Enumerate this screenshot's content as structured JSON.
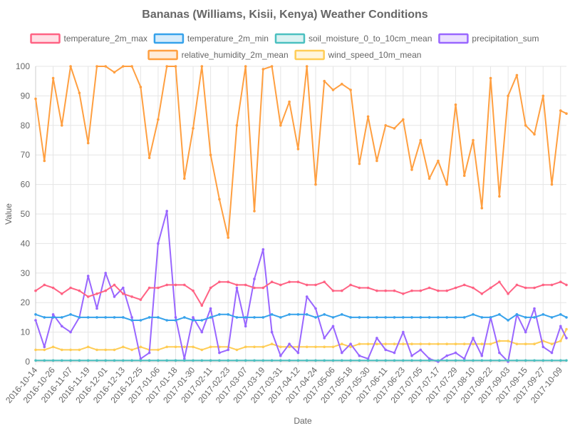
{
  "chart_data": {
    "type": "line",
    "title": "Bananas (Williams, Kisii, Kenya) Weather Conditions",
    "xlabel": "Date",
    "ylabel": "Value",
    "ylim": [
      0,
      100
    ],
    "yticks": [
      0,
      10,
      20,
      30,
      40,
      50,
      60,
      70,
      80,
      90,
      100
    ],
    "x_tick_labels": [
      "2016-10-14",
      "2016-10-26",
      "2016-11-07",
      "2016-11-19",
      "2016-12-01",
      "2016-12-13",
      "2016-12-25",
      "2017-01-06",
      "2017-01-18",
      "2017-01-30",
      "2017-02-11",
      "2017-02-23",
      "2017-03-07",
      "2017-03-19",
      "2017-03-31",
      "2017-04-12",
      "2017-04-24",
      "2017-05-06",
      "2017-05-18",
      "2017-05-30",
      "2017-06-11",
      "2017-06-23",
      "2017-07-05",
      "2017-07-17",
      "2017-07-29",
      "2017-08-10",
      "2017-08-22",
      "2017-09-03",
      "2017-09-15",
      "2017-09-27",
      "2017-10-09"
    ],
    "x": [
      "2016-10-14",
      "2016-10-20",
      "2016-10-26",
      "2016-11-01",
      "2016-11-07",
      "2016-11-13",
      "2016-11-19",
      "2016-11-25",
      "2016-12-01",
      "2016-12-07",
      "2016-12-13",
      "2016-12-19",
      "2016-12-25",
      "2016-12-31",
      "2017-01-06",
      "2017-01-12",
      "2017-01-18",
      "2017-01-24",
      "2017-01-30",
      "2017-02-05",
      "2017-02-11",
      "2017-02-17",
      "2017-02-23",
      "2017-03-01",
      "2017-03-07",
      "2017-03-13",
      "2017-03-19",
      "2017-03-25",
      "2017-03-31",
      "2017-04-06",
      "2017-04-12",
      "2017-04-18",
      "2017-04-24",
      "2017-04-30",
      "2017-05-06",
      "2017-05-12",
      "2017-05-18",
      "2017-05-24",
      "2017-05-30",
      "2017-06-05",
      "2017-06-11",
      "2017-06-17",
      "2017-06-23",
      "2017-06-29",
      "2017-07-05",
      "2017-07-11",
      "2017-07-17",
      "2017-07-23",
      "2017-07-29",
      "2017-08-04",
      "2017-08-10",
      "2017-08-16",
      "2017-08-22",
      "2017-08-28",
      "2017-09-03",
      "2017-09-09",
      "2017-09-15",
      "2017-09-21",
      "2017-09-27",
      "2017-10-03",
      "2017-10-09",
      "2017-10-13"
    ],
    "legend_position": "top",
    "grid": true,
    "series": [
      {
        "name": "temperature_2m_max",
        "color": "#ff6384",
        "fill": "#ffe0e6",
        "values": [
          24,
          26,
          25,
          23,
          25,
          24,
          22,
          23,
          24,
          26,
          23,
          22,
          21,
          25,
          25,
          26,
          26,
          26,
          24,
          19,
          25,
          27,
          27,
          26,
          26,
          25,
          25,
          27,
          26,
          27,
          27,
          26,
          26,
          27,
          24,
          24,
          26,
          25,
          25,
          24,
          24,
          24,
          23,
          24,
          24,
          25,
          24,
          24,
          25,
          26,
          25,
          23,
          25,
          27,
          23,
          26,
          25,
          25,
          26,
          26,
          27,
          26
        ]
      },
      {
        "name": "temperature_2m_min",
        "color": "#36a2eb",
        "fill": "#d7ecfb",
        "values": [
          16,
          15,
          15,
          15,
          16,
          15,
          15,
          15,
          15,
          15,
          15,
          14,
          14,
          15,
          15,
          14,
          14,
          15,
          14,
          14,
          15,
          16,
          16,
          15,
          15,
          15,
          15,
          16,
          15,
          16,
          16,
          16,
          15,
          16,
          15,
          16,
          15,
          15,
          15,
          15,
          15,
          15,
          15,
          15,
          15,
          15,
          15,
          15,
          15,
          15,
          16,
          15,
          15,
          16,
          14,
          16,
          15,
          15,
          16,
          15,
          16,
          15
        ]
      },
      {
        "name": "soil_moisture_0_to_10cm_mean",
        "color": "#4bc0c0",
        "fill": "#dbf2f2",
        "values": [
          0.4,
          0.4,
          0.4,
          0.4,
          0.4,
          0.4,
          0.4,
          0.4,
          0.4,
          0.4,
          0.4,
          0.4,
          0.4,
          0.4,
          0.4,
          0.4,
          0.4,
          0.4,
          0.4,
          0.4,
          0.4,
          0.4,
          0.4,
          0.4,
          0.4,
          0.4,
          0.4,
          0.4,
          0.4,
          0.4,
          0.4,
          0.4,
          0.4,
          0.4,
          0.4,
          0.4,
          0.4,
          0.4,
          0.4,
          0.4,
          0.4,
          0.4,
          0.4,
          0.4,
          0.4,
          0.4,
          0.4,
          0.4,
          0.4,
          0.4,
          0.4,
          0.4,
          0.4,
          0.4,
          0.4,
          0.4,
          0.4,
          0.4,
          0.4,
          0.4,
          0.4,
          0.4
        ]
      },
      {
        "name": "precipitation_sum",
        "color": "#9966ff",
        "fill": "#ebe0ff",
        "values": [
          14,
          5,
          16,
          12,
          10,
          15,
          29,
          18,
          30,
          22,
          25,
          15,
          1,
          3,
          40,
          51,
          15,
          1,
          15,
          10,
          18,
          3,
          4,
          25,
          12,
          28,
          38,
          10,
          2,
          6,
          3,
          22,
          18,
          8,
          12,
          3,
          6,
          2,
          1,
          8,
          4,
          3,
          10,
          2,
          4,
          1,
          0,
          2,
          3,
          1,
          8,
          2,
          15,
          3,
          0,
          16,
          10,
          18,
          5,
          3,
          12,
          8
        ]
      },
      {
        "name": "relative_humidity_2m_mean",
        "color": "#ff9f40",
        "fill": "#ffecd9",
        "values": [
          89,
          68,
          96,
          80,
          100,
          91,
          74,
          100,
          100,
          98,
          100,
          100,
          93,
          69,
          82,
          100,
          100,
          62,
          79,
          100,
          70,
          55,
          42,
          80,
          100,
          51,
          99,
          100,
          80,
          88,
          72,
          100,
          60,
          95,
          92,
          94,
          92,
          67,
          83,
          68,
          80,
          79,
          82,
          65,
          75,
          62,
          68,
          60,
          87,
          63,
          75,
          52,
          96,
          56,
          90,
          97,
          80,
          77,
          90,
          60,
          85,
          84
        ]
      },
      {
        "name": "wind_speed_10m_mean",
        "color": "#ffcd56",
        "fill": "#fff5dd",
        "values": [
          4,
          4,
          5,
          4,
          4,
          4,
          5,
          4,
          4,
          4,
          5,
          4,
          5,
          4,
          4,
          5,
          5,
          5,
          5,
          4,
          5,
          5,
          5,
          4,
          5,
          5,
          5,
          6,
          5,
          5,
          5,
          5,
          5,
          5,
          5,
          6,
          5,
          6,
          6,
          6,
          6,
          6,
          6,
          6,
          6,
          6,
          6,
          6,
          6,
          6,
          6,
          6,
          6,
          7,
          7,
          6,
          6,
          6,
          7,
          6,
          7,
          11
        ]
      }
    ]
  }
}
